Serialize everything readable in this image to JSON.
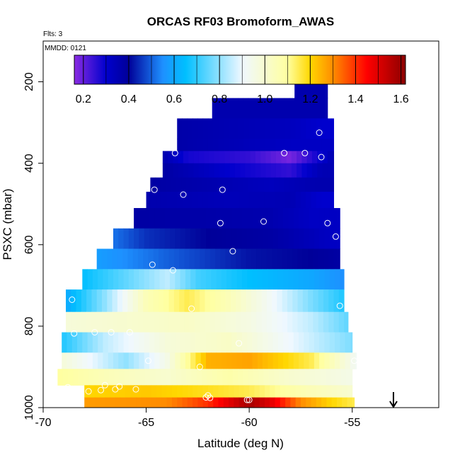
{
  "chart_data": {
    "type": "heatmap",
    "title": "ORCAS RF03 Bromoform_AWAS",
    "flights_label": "Flts: 3",
    "date_label": "MMDD: 0121",
    "xlabel": "Latitude (deg N)",
    "ylabel": "PSXC (mbar)",
    "xlim": [
      -70,
      -50.8
    ],
    "ylim": [
      1000,
      100
    ],
    "x_ticks": [
      -70,
      -65,
      -60,
      -55
    ],
    "y_ticks": [
      200,
      400,
      600,
      800,
      1000
    ],
    "colorbar": {
      "range": [
        0.16,
        1.62
      ],
      "ticks": [
        0.2,
        0.4,
        0.6,
        0.8,
        1.0,
        1.2,
        1.4,
        1.6
      ],
      "tick_labels": [
        "0.2",
        "0.4",
        "0.6",
        "0.8",
        "1.0",
        "1.2",
        "1.4",
        "1.6"
      ],
      "colors": [
        "#8a2be2",
        "#0000cd",
        "#000099",
        "#1e90ff",
        "#00bfff",
        "#f0f8ff",
        "#ffffa0",
        "#ffd700",
        "#ff8c00",
        "#ff0000",
        "#8b0000"
      ],
      "color_stops": [
        0.16,
        0.3,
        0.4,
        0.55,
        0.65,
        0.9,
        1.1,
        1.2,
        1.3,
        1.45,
        1.62
      ]
    },
    "bands": [
      {
        "p": [
          170,
          195
        ],
        "lat": [
          -57.6,
          -56.8
        ],
        "v": [
          [
            -57.6,
            0.35
          ]
        ]
      },
      {
        "p": [
          195,
          240
        ],
        "lat": [
          -57.8,
          -56.2
        ],
        "v": [
          [
            -57.8,
            0.36
          ]
        ]
      },
      {
        "p": [
          240,
          290
        ],
        "lat": [
          -61.8,
          -56.2
        ],
        "v": [
          [
            -61.8,
            0.36
          ]
        ]
      },
      {
        "p": [
          290,
          340
        ],
        "lat": [
          -63.5,
          -55.9
        ],
        "v": [
          [
            -63.5,
            0.37
          ],
          [
            -58,
            0.33
          ],
          [
            -56.5,
            0.3
          ]
        ]
      },
      {
        "p": [
          340,
          370
        ],
        "lat": [
          -63.5,
          -55.9
        ],
        "v": [
          [
            -63.5,
            0.37
          ],
          [
            -58,
            0.32
          ],
          [
            -56.2,
            0.32
          ]
        ]
      },
      {
        "p": [
          370,
          400
        ],
        "lat": [
          -64.2,
          -55.9
        ],
        "v": [
          [
            -64.2,
            0.36
          ],
          [
            -63,
            0.28
          ],
          [
            -60,
            0.25
          ],
          [
            -58,
            0.18
          ],
          [
            -56.5,
            0.3
          ],
          [
            -55.9,
            0.36
          ]
        ]
      },
      {
        "p": [
          400,
          435
        ],
        "lat": [
          -64.2,
          -55.9
        ],
        "v": [
          [
            -64.2,
            0.38
          ],
          [
            -61,
            0.3
          ],
          [
            -58,
            0.25
          ],
          [
            -56.5,
            0.35
          ]
        ]
      },
      {
        "p": [
          435,
          470
        ],
        "lat": [
          -64.8,
          -55.9
        ],
        "v": [
          [
            -64.8,
            0.38
          ],
          [
            -62,
            0.36
          ],
          [
            -59,
            0.33
          ],
          [
            -56.5,
            0.36
          ]
        ]
      },
      {
        "p": [
          470,
          510
        ],
        "lat": [
          -65.0,
          -55.9
        ],
        "v": [
          [
            -65.0,
            0.36
          ],
          [
            -61,
            0.34
          ],
          [
            -58,
            0.35
          ],
          [
            -56.5,
            0.3
          ]
        ]
      },
      {
        "p": [
          510,
          560
        ],
        "lat": [
          -65.6,
          -55.6
        ],
        "v": [
          [
            -65.6,
            0.38
          ],
          [
            -62,
            0.37
          ],
          [
            -59,
            0.36
          ],
          [
            -57,
            0.32
          ]
        ]
      },
      {
        "p": [
          560,
          610
        ],
        "lat": [
          -66.6,
          -55.6
        ],
        "v": [
          [
            -66.6,
            0.52
          ],
          [
            -65,
            0.45
          ],
          [
            -62,
            0.4
          ],
          [
            -59,
            0.38
          ],
          [
            -56,
            0.32
          ]
        ]
      },
      {
        "p": [
          610,
          660
        ],
        "lat": [
          -67.4,
          -55.6
        ],
        "v": [
          [
            -67.4,
            0.58
          ],
          [
            -64,
            0.5
          ],
          [
            -60,
            0.42
          ],
          [
            -57,
            0.4
          ],
          [
            -55.6,
            0.38
          ]
        ]
      },
      {
        "p": [
          660,
          710
        ],
        "lat": [
          -68.1,
          -55.4
        ],
        "v": [
          [
            -68.1,
            0.65
          ],
          [
            -66,
            0.75
          ],
          [
            -64,
            0.85
          ],
          [
            -62.5,
            0.72
          ],
          [
            -60,
            0.65
          ],
          [
            -57,
            0.6
          ],
          [
            -55.4,
            0.55
          ]
        ]
      },
      {
        "p": [
          710,
          765
        ],
        "lat": [
          -68.9,
          -55.4
        ],
        "v": [
          [
            -68.9,
            0.6
          ],
          [
            -67,
            0.8
          ],
          [
            -65,
            1.05
          ],
          [
            -63,
            1.15
          ],
          [
            -61,
            1.05
          ],
          [
            -59,
            0.92
          ],
          [
            -57,
            0.78
          ],
          [
            -55.4,
            0.68
          ]
        ]
      },
      {
        "p": [
          765,
          815
        ],
        "lat": [
          -68.9,
          -55.2
        ],
        "v": [
          [
            -68.9,
            0.98
          ],
          [
            -66,
            1.0
          ],
          [
            -63,
            1.02
          ],
          [
            -60,
            0.96
          ],
          [
            -57,
            0.85
          ],
          [
            -55.2,
            0.75
          ]
        ]
      },
      {
        "p": [
          815,
          865
        ],
        "lat": [
          -69.1,
          -55.0
        ],
        "v": [
          [
            -69.1,
            0.68
          ],
          [
            -67,
            0.85
          ],
          [
            -64,
            0.98
          ],
          [
            -61,
            1.02
          ],
          [
            -58,
            0.9
          ],
          [
            -55,
            0.78
          ]
        ]
      },
      {
        "p": [
          865,
          905
        ],
        "lat": [
          -69.1,
          -54.8
        ],
        "v": [
          [
            -69.1,
            0.98
          ],
          [
            -66,
            0.8
          ],
          [
            -64,
            0.95
          ],
          [
            -62,
            1.25
          ],
          [
            -60,
            1.27
          ],
          [
            -57,
            1.15
          ],
          [
            -54.8,
            0.92
          ]
        ]
      },
      {
        "p": [
          905,
          945
        ],
        "lat": [
          -69.3,
          -55.0
        ],
        "v": [
          [
            -69.3,
            1.1
          ],
          [
            -67,
            1.05
          ],
          [
            -64,
            1.0
          ],
          [
            -61,
            1.08
          ],
          [
            -58,
            1.0
          ],
          [
            -55,
            0.95
          ]
        ]
      },
      {
        "p": [
          945,
          975
        ],
        "lat": [
          -68.0,
          -55.0
        ],
        "v": [
          [
            -68.0,
            1.2
          ],
          [
            -65,
            1.22
          ],
          [
            -62,
            1.18
          ],
          [
            -60,
            1.15
          ],
          [
            -57,
            1.05
          ],
          [
            -55,
            1.0
          ]
        ]
      },
      {
        "p": [
          975,
          1000
        ],
        "lat": [
          -68.0,
          -54.9
        ],
        "v": [
          [
            -68.0,
            1.28
          ],
          [
            -64,
            1.3
          ],
          [
            -62,
            1.4
          ],
          [
            -60,
            1.58
          ],
          [
            -59,
            1.5
          ],
          [
            -57.5,
            1.3
          ],
          [
            -56,
            1.2
          ],
          [
            -54.9,
            1.15
          ]
        ]
      }
    ],
    "points": [
      [
        -57.5,
        178
      ],
      [
        -57.1,
        178
      ],
      [
        -56.6,
        325
      ],
      [
        -63.6,
        375
      ],
      [
        -58.3,
        375
      ],
      [
        -57.3,
        375
      ],
      [
        -56.5,
        385
      ],
      [
        -61.3,
        465
      ],
      [
        -64.6,
        465
      ],
      [
        -63.2,
        477
      ],
      [
        -61.4,
        547
      ],
      [
        -59.3,
        543
      ],
      [
        -56.2,
        547
      ],
      [
        -55.8,
        580
      ],
      [
        -60.8,
        616
      ],
      [
        -64.7,
        649
      ],
      [
        -63.7,
        663
      ],
      [
        -68.6,
        735
      ],
      [
        -62.8,
        757
      ],
      [
        -55.6,
        750
      ],
      [
        -67.5,
        815
      ],
      [
        -66.7,
        815
      ],
      [
        -65.8,
        815
      ],
      [
        -68.5,
        818
      ],
      [
        -60.5,
        842
      ],
      [
        -64.9,
        885
      ],
      [
        -62.4,
        900
      ],
      [
        -54.9,
        885
      ],
      [
        -68.8,
        950
      ],
      [
        -67.0,
        945
      ],
      [
        -67.2,
        957
      ],
      [
        -66.3,
        948
      ],
      [
        -66.5,
        955
      ],
      [
        -65.5,
        955
      ],
      [
        -67.8,
        960
      ],
      [
        -68.2,
        963
      ],
      [
        -62.0,
        970
      ],
      [
        -62.1,
        975
      ],
      [
        -61.9,
        976
      ],
      [
        -60.1,
        981
      ],
      [
        -60.0,
        981
      ]
    ],
    "arrow": {
      "x": -53.0,
      "p": 1000
    }
  }
}
